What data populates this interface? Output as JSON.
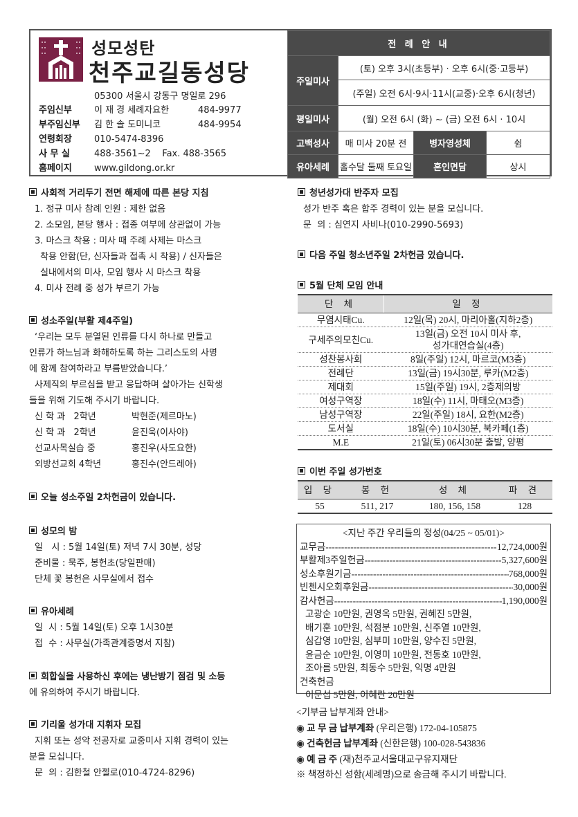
{
  "header": {
    "logo_text": "성모성탄",
    "parish_name": "천주교길동성당",
    "address": "05300 서울시 강동구 명일로 296",
    "contacts": [
      {
        "label": "주임신부",
        "name": "이 재 경 세례자요한",
        "phone": "484-9977"
      },
      {
        "label": "부주임신부",
        "name": "김 한 솔 도미니코",
        "phone": "484-9954"
      },
      {
        "label": "연령회장",
        "name": "010-5474-8396",
        "phone": ""
      },
      {
        "label": "사 무 실",
        "name": "488-3561~2    Fax. 488-3565",
        "phone": ""
      },
      {
        "label": "홈페이지",
        "name": "www.gildong.or.kr",
        "phone": ""
      }
    ]
  },
  "liturgy": {
    "title": "전 례 안 내",
    "sunday_label": "주일미사",
    "sunday_sat": "(토) 오후 3시(초등부) · 오후 6시(중·고등부)",
    "sunday_sun": "(주일) 오전 6시·9시·11시(교중)·오후 6시(청년)",
    "weekday_label": "평일미사",
    "weekday": "(월) 오전 6시  (화) ~ (금) 오전 6시 · 10시",
    "confession_label": "고백성사",
    "confession": "매 미사 20분 전",
    "sick_label": "병자영성체",
    "sick": "쉼",
    "baptism_label": "유아세례",
    "baptism": "홀수달 둘째 토요일",
    "marriage_label": "혼인면담",
    "marriage": "상시"
  },
  "left": {
    "s1": {
      "title": "사회적 거리두기 전면 해제에 따른 본당 지침",
      "lines": [
        "1. 정규 미사 참례 인원 : 제한 없음",
        "2. 소모임, 본당 행사 : 접종 여부에 상관없이 가능",
        "3. 마스크 착용 : 미사 때 주례 사제는 마스크",
        "착용 안함(단, 신자들과 접촉 시 착용) / 신자들은",
        "실내에서의 미사, 모임 행사 시 마스크 착용",
        "4. 미사 전례 중 성가 부르기 가능"
      ]
    },
    "s2": {
      "title": "성소주일(부활 제4주일)",
      "lines": [
        "‘우리는 모두 분열된 인류를 다시 하나로 만들고",
        "인류가 하느님과 화해하도록 하는 그리스도의 사명",
        "에 함께 참여하라고 부름받았습니다.’",
        "사제직의 부르심을 받고 응답하며 살아가는 신학생",
        "들을 위해 기도해 주시기 바랍니다."
      ],
      "students": [
        [
          "신 학 과   2학년",
          "박현준(제르마노)"
        ],
        [
          "신 학 과   2학년",
          "윤진욱(이사야)"
        ],
        [
          "선교사목실습 중",
          "홍진우(사도요한)"
        ],
        [
          "외방선교회 4학년",
          "홍진수(안드레아)"
        ]
      ]
    },
    "s3": {
      "title": "오늘 성소주일 2차헌금이 있습니다."
    },
    "s4": {
      "title": "성모의 밤",
      "lines": [
        "일   시 : 5월 14일(토) 저녁 7시 30분, 성당",
        "준비물 : 묵주, 봉헌초(당일판매)",
        "단체 꽃 봉헌은 사무실에서 접수"
      ]
    },
    "s5": {
      "title": "유아세례",
      "lines": [
        "일  시 : 5월 14일(토) 오후 1시30분",
        "접  수 : 사무실(가족관계증명서 지참)"
      ]
    },
    "s6": {
      "title": "회합실을 사용하신 후에는 냉난방기 점검 및 소등",
      "lines": [
        "에 유의하여 주시기 바랍니다."
      ]
    },
    "s7": {
      "title": "기리울 성가대 지휘자 모집",
      "lines": [
        "지휘 또는 성악 전공자로 교중미사 지휘 경력이 있는",
        "분을 모십니다.",
        "문  의 : 김한철 안젤로(010-4724-8296)"
      ]
    }
  },
  "right": {
    "s1": {
      "title": "청년성가대 반주자 모집",
      "lines": [
        "성가 반주 혹은 합주 경력이 있는 분을 모십니다.",
        "문  의 : 심연지 사비나(010-2990-5693)"
      ]
    },
    "s2": {
      "title": "다음 주일 청소년주일 2차헌금 있습니다."
    },
    "s3": {
      "title": "5월 단체 모임 안내",
      "headers": [
        "단 체",
        "일 정"
      ],
      "rows": [
        [
          "무염시태Cu.",
          "12일(목) 20시, 마리아홀(지하2층)"
        ],
        [
          "구세주의모친Cu.",
          "13일(금) 오전 10시 미사 후,\n성가대연습실(4층)"
        ],
        [
          "성찬봉사회",
          "8일(주일) 12시, 마르코(M3층)"
        ],
        [
          "전례단",
          "13일(금) 19시30분, 루카(M2층)"
        ],
        [
          "제대회",
          "15일(주일) 19시, 2층제의방"
        ],
        [
          "여성구역장",
          "18일(수) 11시, 마태오(M3층)"
        ],
        [
          "남성구역장",
          "22일(주일) 18시, 요한(M2층)"
        ],
        [
          "도서실",
          "18일(수) 10시30분, 북카페(1층)"
        ],
        [
          "M.E",
          "21일(토) 06시30분 출발, 양평"
        ]
      ]
    },
    "s4": {
      "title": "이번 주일 성가번호",
      "headers": [
        "입 당",
        "봉 헌",
        "성 체",
        "파 견"
      ],
      "values": [
        "55",
        "511, 217",
        "180, 156, 158",
        "128"
      ]
    },
    "offerings": {
      "title": "<지난 주간 우리들의 정성(04/25 ~ 05/01)>",
      "items": [
        [
          "교무금",
          "12,724,000원"
        ],
        [
          "부활제3주일헌금",
          "5,327,600원"
        ],
        [
          "성소후원기금",
          "768,000원"
        ],
        [
          "빈첸시오회후원금",
          "30,000원"
        ],
        [
          "감사헌금",
          "1,190,000원"
        ]
      ],
      "thanks_lines": [
        "고광순 10만원, 권영옥 5만원, 권혜진 5만원,",
        "배기훈 10만원, 석점분 10만원, 신주열 10만원,",
        "심갑영 10만원, 심부미 10만원, 양수진 5만원,",
        "윤금순 10만원, 이영미 10만원, 전동호 10만원,",
        "조아름 5만원, 최동수 5만원, 익명 4만원"
      ],
      "building_label": "건축헌금",
      "building_line": "이문섭 5만원, 이혜란 20만원"
    },
    "accounts": {
      "title": "<기부금 납부계좌 안내>",
      "items": [
        [
          "교 무 금 납부계좌",
          "(우리은행) 172-04-105875"
        ],
        [
          "건축헌금 납부계좌",
          "(신한은행) 100-028-543836"
        ],
        [
          "예 금 주",
          "(재)천주교서울대교구유지재단"
        ]
      ],
      "note": "※ 책정하신 성함(세례명)으로 송금해 주시기 바랍니다."
    }
  },
  "colors": {
    "logo": "#7a2145",
    "dark_cell": "#4a4a4a",
    "table_header": "#d9d9d9"
  }
}
